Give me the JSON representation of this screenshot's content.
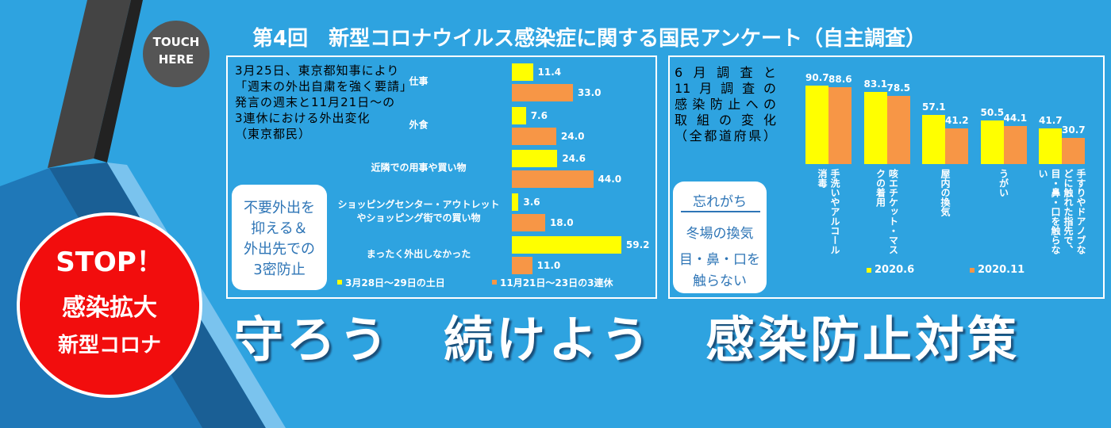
{
  "title": "第4回　新型コロナウイルス感染症に関する国民アンケート（自主調査）",
  "touch_button": [
    "TOUCH",
    "HERE"
  ],
  "stop_badge": [
    "STOP！",
    "感染拡大",
    "新型コロナ"
  ],
  "slogan": "守ろう　続けよう　感染防止対策",
  "left_panel": {
    "note": [
      "3月25日、東京都知事により",
      "「週末の外出自粛を強く要請」",
      "発言の週末と11月21日～の",
      "3連休における外出変化",
      "（東京都民）"
    ],
    "callout": [
      "不要外出を",
      "抑える＆",
      "外出先での",
      "3密防止"
    ]
  },
  "right_panel": {
    "note": [
      "6月調査と",
      "11月調査の",
      "感染防止への",
      "取組の変化",
      "（全都道府県）"
    ],
    "callout": [
      "忘れがち",
      "冬場の換気",
      "目・鼻・口を",
      "触らない"
    ]
  },
  "chart_data": [
    {
      "type": "hbar",
      "categories": [
        "仕事",
        "外食",
        "近隣での用事や買い物",
        "ショッピングセンター・アウトレットやショッピング街での買い物",
        "まったく外出しなかった"
      ],
      "series": [
        {
          "name": "3月28日～29日の土日",
          "color": "#ffff00",
          "values": [
            11.4,
            7.6,
            24.6,
            3.6,
            59.2
          ],
          "value_labels": [
            "11.4",
            "7.6",
            "24.6",
            "3.6",
            "59.2"
          ]
        },
        {
          "name": "11月21日～23日の3連休",
          "color": "#f79646",
          "values": [
            33.0,
            24.0,
            44.0,
            18.0,
            11.0
          ],
          "value_labels": [
            "33.0",
            "24.0",
            "44.0",
            "18.0",
            "11.0"
          ]
        }
      ]
    },
    {
      "type": "bar",
      "categories": [
        "手洗いやアルコール消毒",
        "咳エチケット・マスクの着用",
        "屋内の換気",
        "うがい",
        "手すりやドアノブなどに触れた指先で、目・鼻・口を触らない"
      ],
      "series": [
        {
          "name": "2020.6",
          "color": "#ffff00",
          "values": [
            90.7,
            83.1,
            57.1,
            50.5,
            41.7
          ]
        },
        {
          "name": "2020.11",
          "color": "#f79646",
          "values": [
            88.6,
            78.5,
            41.2,
            44.1,
            30.7
          ]
        }
      ]
    }
  ]
}
